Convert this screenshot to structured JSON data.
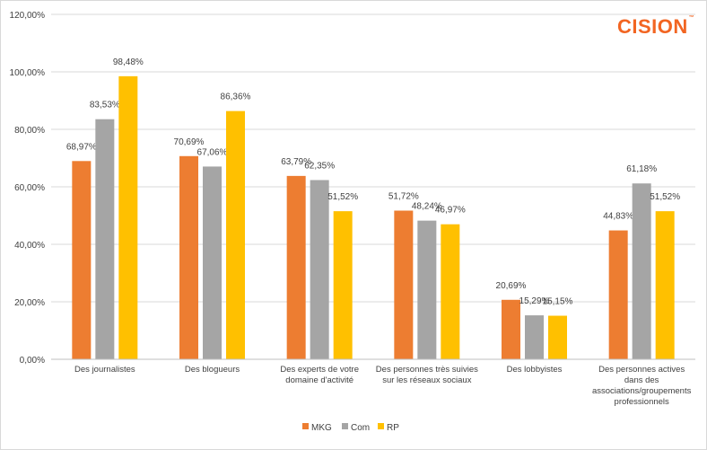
{
  "brand": {
    "logo_text": "CISION",
    "color": "#f26522"
  },
  "chart_data": {
    "type": "bar",
    "categories": [
      [
        "Des journalistes"
      ],
      [
        "Des blogueurs"
      ],
      [
        "Des experts de votre",
        "domaine d'activité"
      ],
      [
        "Des personnes très suivies",
        "sur les réseaux sociaux"
      ],
      [
        "Des lobbyistes"
      ],
      [
        "Des personnes actives",
        "dans des",
        "associations/groupements",
        "professionnels"
      ]
    ],
    "series": [
      {
        "name": "MKG",
        "color": "#ed7d31",
        "values": [
          68.97,
          70.69,
          63.79,
          51.72,
          20.69,
          44.83
        ],
        "labels": [
          "68,97%",
          "70,69%",
          "63,79%",
          "51,72%",
          "20,69%",
          "44,83%"
        ]
      },
      {
        "name": "Com",
        "color": "#a5a5a5",
        "values": [
          83.53,
          67.06,
          62.35,
          48.24,
          15.29,
          61.18
        ],
        "labels": [
          "83,53%",
          "67,06%",
          "62,35%",
          "48,24%",
          "15,29%",
          "61,18%"
        ]
      },
      {
        "name": "RP",
        "color": "#ffc000",
        "values": [
          98.48,
          86.36,
          51.52,
          46.97,
          15.15,
          51.52
        ],
        "labels": [
          "98,48%",
          "86,36%",
          "51,52%",
          "46,97%",
          "15,15%",
          "51,52%"
        ]
      }
    ],
    "ylim": [
      0,
      120
    ],
    "yticks": [
      0,
      20,
      40,
      60,
      80,
      100,
      120
    ],
    "ytick_labels": [
      "0,00%",
      "20,00%",
      "40,00%",
      "60,00%",
      "80,00%",
      "100,00%",
      "120,00%"
    ],
    "grid": true,
    "legend": "bottom"
  }
}
